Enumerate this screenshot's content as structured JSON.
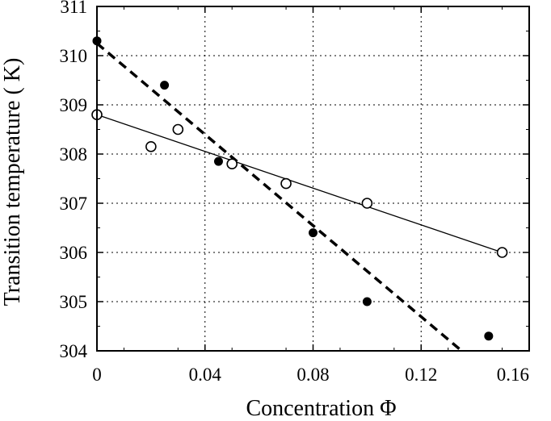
{
  "chart_data": {
    "type": "scatter",
    "title": "",
    "xlabel": "Concentration Φ",
    "ylabel": "Transition temperature ( K)",
    "xlim": [
      0,
      0.16
    ],
    "ylim": [
      304,
      311
    ],
    "x_ticks": [
      "0",
      "0.04",
      "0.08",
      "0.12",
      "0.16"
    ],
    "y_ticks": [
      "304",
      "305",
      "306",
      "307",
      "308",
      "309",
      "310",
      "311"
    ],
    "grid": "dotted",
    "series": [
      {
        "marker": "filled-circle",
        "points": [
          {
            "x": 0.0,
            "y": 310.3
          },
          {
            "x": 0.025,
            "y": 309.4
          },
          {
            "x": 0.045,
            "y": 307.85
          },
          {
            "x": 0.08,
            "y": 306.4
          },
          {
            "x": 0.1,
            "y": 305.0
          },
          {
            "x": 0.145,
            "y": 304.3
          }
        ],
        "fit": {
          "style": "dashed",
          "x": [
            0.0,
            0.135
          ],
          "y": [
            310.25,
            304.0
          ]
        }
      },
      {
        "marker": "open-circle",
        "points": [
          {
            "x": 0.0,
            "y": 308.8
          },
          {
            "x": 0.02,
            "y": 308.15
          },
          {
            "x": 0.03,
            "y": 308.5
          },
          {
            "x": 0.05,
            "y": 307.8
          },
          {
            "x": 0.07,
            "y": 307.4
          },
          {
            "x": 0.1,
            "y": 307.0
          },
          {
            "x": 0.15,
            "y": 306.0
          }
        ],
        "fit": {
          "style": "solid",
          "x": [
            0.0,
            0.15
          ],
          "y": [
            308.8,
            306.0
          ]
        }
      }
    ]
  }
}
